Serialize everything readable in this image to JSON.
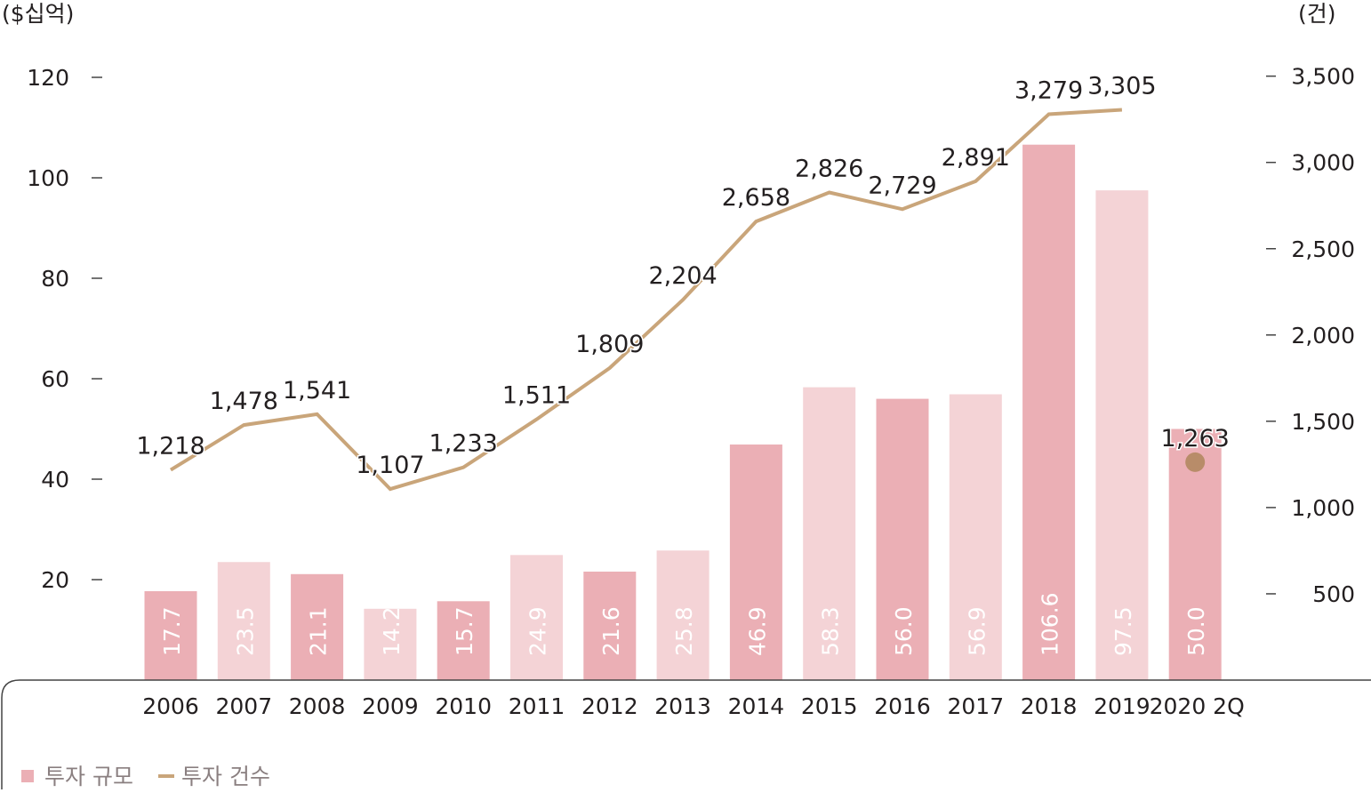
{
  "chart_data": {
    "type": "bar",
    "categories": [
      "2006",
      "2007",
      "2008",
      "2009",
      "2010",
      "2011",
      "2012",
      "2013",
      "2014",
      "2015",
      "2016",
      "2017",
      "2018",
      "2019",
      "2020 2Q"
    ],
    "y_left_unit": "($십억)",
    "y_right_unit": "(건)",
    "y_left_ticks": [
      "120",
      "100",
      "80",
      "60",
      "40",
      "20"
    ],
    "y_right_ticks": [
      "3,500",
      "3,000",
      "2,500",
      "2,000",
      "1,500",
      "1,000",
      "500"
    ],
    "ylim_left": [
      0,
      120
    ],
    "ylim_right": [
      0,
      3500
    ],
    "series": [
      {
        "name": "투자 규모",
        "type": "bar",
        "axis": "left",
        "values": [
          17.7,
          23.5,
          21.1,
          14.2,
          15.7,
          24.9,
          21.6,
          25.8,
          46.9,
          58.3,
          56.0,
          56.9,
          106.6,
          97.5,
          50.0
        ],
        "labels": [
          "17.7",
          "23.5",
          "21.1",
          "14.2",
          "15.7",
          "24.9",
          "21.6",
          "25.8",
          "46.9",
          "58.3",
          "56.0",
          "56.9",
          "106.6",
          "97.5",
          "50.0"
        ]
      },
      {
        "name": "투자 건수",
        "type": "line",
        "axis": "right",
        "values": [
          1218,
          1478,
          1541,
          1107,
          1233,
          1511,
          1809,
          2204,
          2658,
          2826,
          2729,
          2891,
          3279,
          3305,
          1263
        ],
        "labels": [
          "1,218",
          "1,478",
          "1,541",
          "1,107",
          "1,233",
          "1,511",
          "1,809",
          "2,204",
          "2,658",
          "2,826",
          "2,729",
          "2,891",
          "3,279",
          "3,305",
          "1,263"
        ]
      }
    ],
    "legend": [
      "투자 규모",
      "투자 건수"
    ],
    "legend_position": "bottom-left",
    "grid": false,
    "colors": {
      "bar_dark": "#ebafb5",
      "bar_light": "#f4d3d6",
      "line": "#c9a57a",
      "point": "#b88c69",
      "bar_label": "#ffffff",
      "text": "#231f20",
      "axis": "#444444"
    }
  }
}
